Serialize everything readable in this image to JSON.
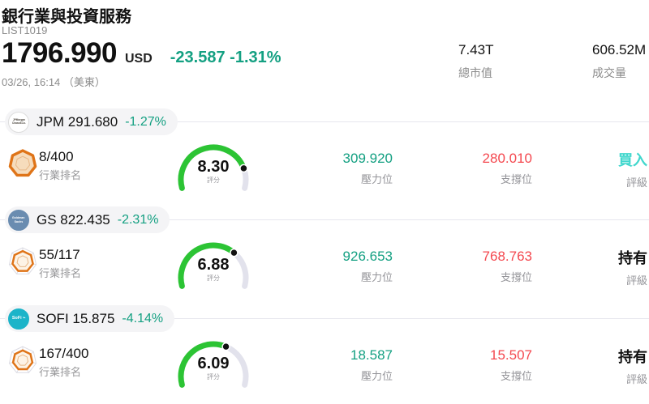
{
  "header": {
    "title": "銀行業與投資服務",
    "list_id": "LIST1019",
    "price": "1796.990",
    "currency": "USD",
    "change": "-23.587 -1.31%",
    "timestamp": "03/26, 16:14 （美東）",
    "stats": [
      {
        "value": "7.43T",
        "label": "總市值"
      },
      {
        "value": "606.52M",
        "label": "成交量"
      }
    ]
  },
  "colors": {
    "down_teal": "#14a082",
    "support_red": "#f4484f",
    "rating_buy": "#41d7cd",
    "rating_hold": "#111111",
    "gauge_green": "#2cc434",
    "gauge_track": "#e2e2ec",
    "badge_orange": "#df7418"
  },
  "rows": [
    {
      "symbol": "JPM",
      "price": "291.680",
      "change": "-1.27%",
      "logo": {
        "name": "jpmorgan-logo",
        "text1": "JPMorgan",
        "text2": "Chase&Co.",
        "bg": "#ffffff",
        "fg": "#4a443c",
        "border": "#dddddd",
        "size": "3.5px"
      },
      "rank": "8/400",
      "rank_label": "行業排名",
      "score": 8.3,
      "score_display": "8.30",
      "score_label": "評分",
      "pressure": "309.920",
      "pressure_label": "壓力位",
      "support": "280.010",
      "support_label": "支撐位",
      "rating": "買入",
      "rating_label": "評級",
      "rating_color": "#41d7cd",
      "badge": {
        "scale": 0.94,
        "fill": "#f6dcbc",
        "stroke_w": 3.4
      }
    },
    {
      "symbol": "GS",
      "price": "822.435",
      "change": "-2.31%",
      "logo": {
        "name": "goldman-sachs-logo",
        "text1": "Goldman",
        "text2": "Sachs",
        "bg": "#6a8cb0",
        "fg": "#ffffff",
        "border": "#6a8cb0",
        "size": "4px"
      },
      "rank": "55/117",
      "rank_label": "行業排名",
      "score": 6.88,
      "score_display": "6.88",
      "score_label": "評分",
      "pressure": "926.653",
      "pressure_label": "壓力位",
      "support": "768.763",
      "support_label": "支撐位",
      "rating": "持有",
      "rating_label": "評級",
      "rating_color": "#111111",
      "badge": {
        "scale": 0.76,
        "fill": "#fdf3e6",
        "stroke_w": 2.5
      }
    },
    {
      "symbol": "SOFI",
      "price": "15.875",
      "change": "-4.14%",
      "logo": {
        "name": "sofi-logo",
        "text1": "SoFi ⌁",
        "text2": "",
        "bg": "#1cb4c9",
        "fg": "#ffffff",
        "border": "#1cb4c9",
        "size": "6px"
      },
      "rank": "167/400",
      "rank_label": "行業排名",
      "score": 6.09,
      "score_display": "6.09",
      "score_label": "評分",
      "pressure": "18.587",
      "pressure_label": "壓力位",
      "support": "15.507",
      "support_label": "支撐位",
      "rating": "持有",
      "rating_label": "評級",
      "rating_color": "#111111",
      "badge": {
        "scale": 0.72,
        "fill": "#fdf3e6",
        "stroke_w": 2.5
      }
    }
  ]
}
